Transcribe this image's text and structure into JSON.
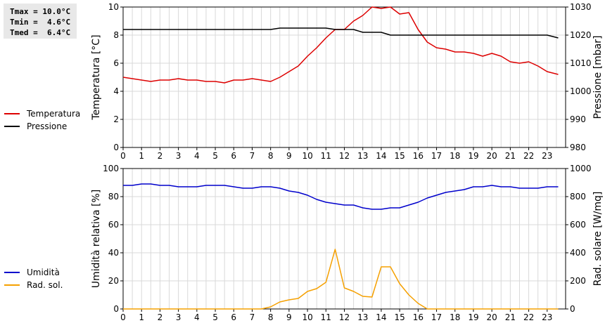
{
  "stats": {
    "tmax": "Tmax = 10.0°C",
    "tmin": "Tmin =  4.6°C",
    "tmed": "Tmed =  6.4°C"
  },
  "legend_top": [
    {
      "label": "Temperatura",
      "color": "#dd0000"
    },
    {
      "label": "Pressione",
      "color": "#000000"
    }
  ],
  "legend_bottom": [
    {
      "label": "Umidità",
      "color": "#0000cc"
    },
    {
      "label": "Rad. sol.",
      "color": "#f5a000"
    }
  ],
  "chart_data": [
    {
      "type": "line",
      "ylabel": "Temperatura [°C]",
      "y2label": "Pressione [mbar]",
      "xlim": [
        0,
        24
      ],
      "ylim": [
        0,
        10
      ],
      "y2lim": [
        980,
        1030
      ],
      "x_ticks": [
        0,
        1,
        2,
        3,
        4,
        5,
        6,
        7,
        8,
        9,
        10,
        11,
        12,
        13,
        14,
        15,
        16,
        17,
        18,
        19,
        20,
        21,
        22,
        23
      ],
      "y_ticks": [
        0,
        2,
        4,
        6,
        8,
        10
      ],
      "y2_ticks": [
        980,
        990,
        1000,
        1010,
        1020,
        1030
      ],
      "grid": true,
      "series": [
        {
          "name": "Temperatura",
          "axis": "left",
          "color": "#dd0000",
          "x": [
            0,
            0.5,
            1,
            1.5,
            2,
            2.5,
            3,
            3.5,
            4,
            4.5,
            5,
            5.5,
            6,
            6.5,
            7,
            7.5,
            8,
            8.5,
            9,
            9.5,
            10,
            10.5,
            11,
            11.5,
            12,
            12.5,
            13,
            13.5,
            14,
            14.5,
            15,
            15.5,
            16,
            16.5,
            17,
            17.5,
            18,
            18.5,
            19,
            19.5,
            20,
            20.5,
            21,
            21.5,
            22,
            22.5,
            23,
            23.6
          ],
          "values": [
            5.0,
            4.9,
            4.8,
            4.7,
            4.8,
            4.8,
            4.9,
            4.8,
            4.8,
            4.7,
            4.7,
            4.6,
            4.8,
            4.8,
            4.9,
            4.8,
            4.7,
            5.0,
            5.4,
            5.8,
            6.5,
            7.1,
            7.8,
            8.4,
            8.4,
            9.0,
            9.4,
            10.0,
            9.9,
            10.0,
            9.5,
            9.6,
            8.4,
            7.5,
            7.1,
            7.0,
            6.8,
            6.8,
            6.7,
            6.5,
            6.7,
            6.5,
            6.1,
            6.0,
            6.1,
            5.8,
            5.4,
            5.2
          ]
        },
        {
          "name": "Pressione",
          "axis": "right",
          "color": "#000000",
          "x": [
            0,
            0.5,
            1,
            1.5,
            2,
            2.5,
            3,
            3.5,
            4,
            4.5,
            5,
            5.5,
            6,
            6.5,
            7,
            7.5,
            8,
            8.5,
            9,
            9.5,
            10,
            10.5,
            11,
            11.5,
            12,
            12.5,
            13,
            13.5,
            14,
            14.5,
            15,
            15.5,
            16,
            16.5,
            17,
            17.5,
            18,
            18.5,
            19,
            19.5,
            20,
            20.5,
            21,
            21.5,
            22,
            22.5,
            23,
            23.6
          ],
          "values": [
            1022,
            1022,
            1022,
            1022,
            1022,
            1022,
            1022,
            1022,
            1022,
            1022,
            1022,
            1022,
            1022,
            1022,
            1022,
            1022,
            1022,
            1022.5,
            1022.5,
            1022.5,
            1022.5,
            1022.5,
            1022.5,
            1022,
            1022,
            1022,
            1021,
            1021,
            1021,
            1020,
            1020,
            1020,
            1020,
            1020,
            1020,
            1020,
            1020,
            1020,
            1020,
            1020,
            1020,
            1020,
            1020,
            1020,
            1020,
            1020,
            1020,
            1019
          ]
        }
      ]
    },
    {
      "type": "line",
      "ylabel": "Umidità relativa [%]",
      "y2label": "Rad. solare [W/mq]",
      "xlim": [
        0,
        24
      ],
      "ylim": [
        0,
        100
      ],
      "y2lim": [
        0,
        1000
      ],
      "x_ticks": [
        0,
        1,
        2,
        3,
        4,
        5,
        6,
        7,
        8,
        9,
        10,
        11,
        12,
        13,
        14,
        15,
        16,
        17,
        18,
        19,
        20,
        21,
        22,
        23
      ],
      "y_ticks": [
        0,
        20,
        40,
        60,
        80,
        100
      ],
      "y2_ticks": [
        0,
        200,
        400,
        600,
        800,
        1000
      ],
      "grid": true,
      "series": [
        {
          "name": "Umidità",
          "axis": "left",
          "color": "#0000cc",
          "x": [
            0,
            0.5,
            1,
            1.5,
            2,
            2.5,
            3,
            3.5,
            4,
            4.5,
            5,
            5.5,
            6,
            6.5,
            7,
            7.5,
            8,
            8.5,
            9,
            9.5,
            10,
            10.5,
            11,
            11.5,
            12,
            12.5,
            13,
            13.5,
            14,
            14.5,
            15,
            15.5,
            16,
            16.5,
            17,
            17.5,
            18,
            18.5,
            19,
            19.5,
            20,
            20.5,
            21,
            21.5,
            22,
            22.5,
            23,
            23.6
          ],
          "values": [
            88,
            88,
            89,
            89,
            88,
            88,
            87,
            87,
            87,
            88,
            88,
            88,
            87,
            86,
            86,
            87,
            87,
            86,
            84,
            83,
            81,
            78,
            76,
            75,
            74,
            74,
            72,
            71,
            71,
            72,
            72,
            74,
            76,
            79,
            81,
            83,
            84,
            85,
            87,
            87,
            88,
            87,
            87,
            86,
            86,
            86,
            87,
            87
          ]
        },
        {
          "name": "Rad. sol.",
          "axis": "right",
          "color": "#f5a000",
          "x": [
            0,
            0.5,
            1,
            1.5,
            2,
            2.5,
            3,
            3.5,
            4,
            4.5,
            5,
            5.5,
            6,
            6.5,
            7,
            7.5,
            8,
            8.5,
            9,
            9.5,
            10,
            10.5,
            11,
            11.5,
            12,
            12.5,
            13,
            13.5,
            14,
            14.5,
            15,
            15.5,
            16,
            16.5,
            17,
            17.5,
            18,
            18.5,
            19,
            19.5,
            20,
            20.5,
            21,
            21.5,
            22,
            22.5,
            23,
            23.6
          ],
          "values": [
            0,
            0,
            0,
            0,
            0,
            0,
            0,
            0,
            0,
            0,
            0,
            0,
            0,
            0,
            0,
            0,
            15,
            50,
            65,
            75,
            125,
            145,
            190,
            425,
            150,
            125,
            90,
            85,
            300,
            300,
            180,
            100,
            40,
            0,
            0,
            0,
            0,
            0,
            0,
            0,
            0,
            0,
            0,
            0,
            0,
            0,
            0,
            0
          ]
        }
      ]
    }
  ]
}
